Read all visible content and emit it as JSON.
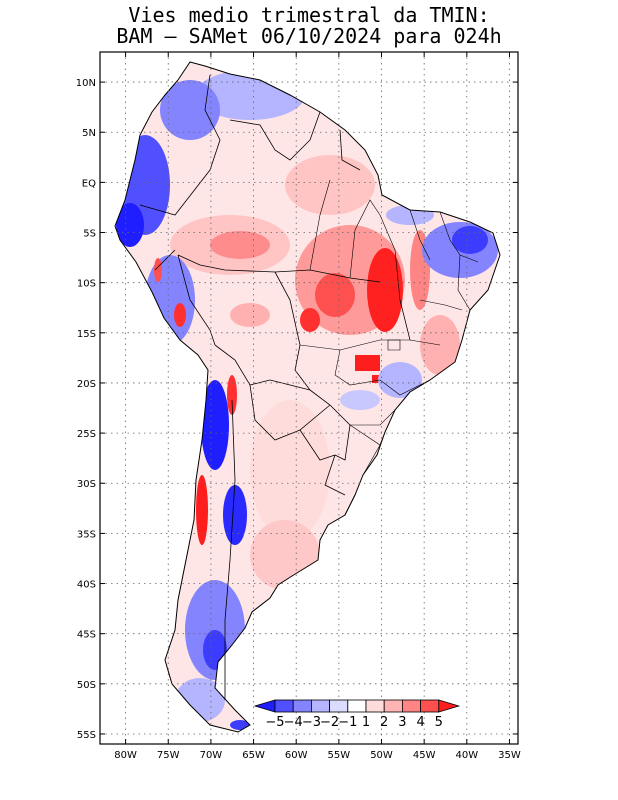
{
  "title": {
    "line1": "Vies medio trimestral da TMIN:",
    "line2": "BAM – SAMet 06/10/2024  para 024h"
  },
  "map": {
    "region": "South America",
    "lon_range": [
      -83,
      -34
    ],
    "lat_range": [
      -56,
      13
    ],
    "lat_ticks": [
      "10N",
      "5N",
      "EQ",
      "5S",
      "10S",
      "15S",
      "20S",
      "25S",
      "30S",
      "35S",
      "40S",
      "45S",
      "50S",
      "55S"
    ],
    "lon_ticks": [
      "80W",
      "75W",
      "70W",
      "65W",
      "60W",
      "55W",
      "50W",
      "45W",
      "40W",
      "35W"
    ],
    "grid": "dotted",
    "ocean_color": "#ffffff"
  },
  "colorbar": {
    "labels": [
      "−5",
      "−4",
      "−3",
      "−2",
      "−1",
      "1",
      "2",
      "3",
      "4",
      "5"
    ],
    "colors": [
      "#1e1eff",
      "#5050ff",
      "#8484ff",
      "#b4b4ff",
      "#dcdcff",
      "#ffffff",
      "#ffdcdc",
      "#ffb4b4",
      "#ff8484",
      "#ff5050",
      "#ff1e1e"
    ],
    "placement": "bottom-right"
  }
}
